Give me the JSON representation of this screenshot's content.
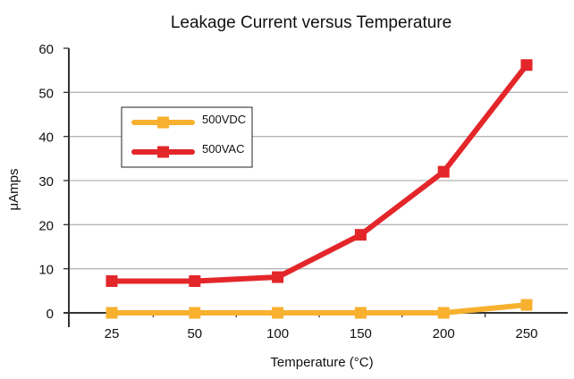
{
  "chart_data": {
    "type": "line",
    "title": "Leakage Current versus Temperature",
    "xlabel": "Temperature (°C)",
    "ylabel": "μAmps",
    "categories": [
      "25",
      "50",
      "100",
      "150",
      "200",
      "250"
    ],
    "ylim": [
      0,
      60
    ],
    "yticks": [
      "0",
      "10",
      "20",
      "30",
      "40",
      "50",
      "60"
    ],
    "grid": true,
    "legend_position": "top-left",
    "series": [
      {
        "name": "500VDC",
        "color": "#f7b12f",
        "values": [
          0,
          0,
          0,
          0,
          0,
          1.8
        ]
      },
      {
        "name": "500VAC",
        "color": "#e3262a",
        "values": [
          7.2,
          7.2,
          8.1,
          17.7,
          32,
          56.2
        ]
      }
    ]
  }
}
